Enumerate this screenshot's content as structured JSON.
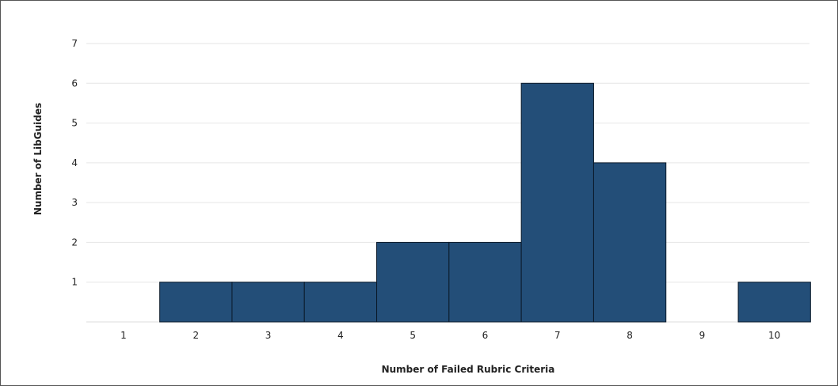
{
  "chart_data": {
    "type": "bar",
    "title": "",
    "xlabel": "Number of Failed Rubric Criteria",
    "ylabel": "Number of LibGuides",
    "categories": [
      "1",
      "2",
      "3",
      "4",
      "5",
      "6",
      "7",
      "8",
      "9",
      "10"
    ],
    "values": [
      0,
      1,
      1,
      1,
      2,
      2,
      6,
      4,
      0,
      1
    ],
    "ylim": [
      0,
      7
    ],
    "yticks": [
      1,
      2,
      3,
      4,
      5,
      6,
      7
    ],
    "grid": true,
    "legend": "none",
    "colors": {
      "bar": "#234e78",
      "bar_edge": "#0b1a2a",
      "grid": "#e6e6e6"
    }
  }
}
